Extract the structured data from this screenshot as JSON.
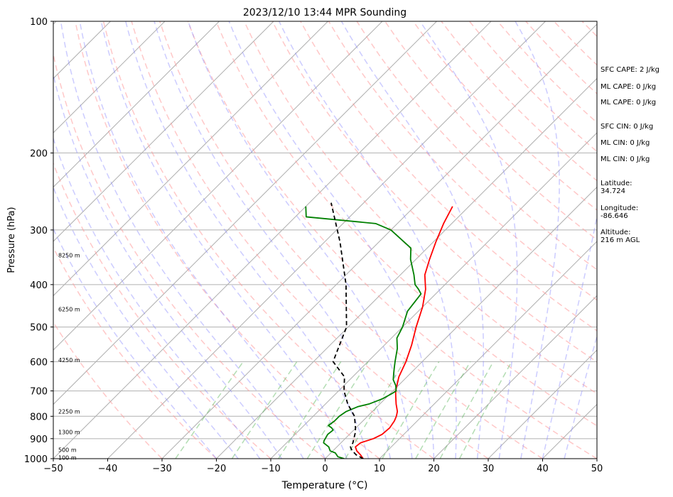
{
  "chart_data": {
    "type": "line",
    "title": "2023/12/10 13:44 MPR Sounding",
    "xlabel": "Temperature (°C)",
    "ylabel": "Pressure (hPa)",
    "xlim": [
      -50,
      50
    ],
    "ylim": [
      1000,
      100
    ],
    "y_scale": "log",
    "x_ticks": [
      "−50",
      "−40",
      "−30",
      "−20",
      "−10",
      "0",
      "10",
      "20",
      "30",
      "40",
      "50"
    ],
    "y_ticks": [
      "100",
      "200",
      "300",
      "400",
      "500",
      "600",
      "700",
      "800",
      "900",
      "1000"
    ],
    "grid": "horizontal isobars",
    "series": [
      {
        "color": "#ff0000",
        "x": [
          7.0,
          5.8,
          4.4,
          3.4,
          3.6,
          5.2,
          6.0,
          6.2,
          5.8,
          5.3,
          4.6,
          3.0,
          1.5,
          0.5,
          -1.5,
          -3.0,
          -5.0,
          -7.5,
          -10.0,
          -12.7,
          -15.5,
          -17.5,
          -19.5,
          -21.5,
          -23.0
        ],
        "y": [
          1000,
          980,
          960,
          940,
          920,
          900,
          880,
          850,
          820,
          800,
          780,
          750,
          720,
          700,
          650,
          600,
          550,
          500,
          450,
          410,
          380,
          350,
          320,
          290,
          265
        ]
      },
      {
        "color": "#008000",
        "x": [
          3.5,
          2.0,
          0.8,
          -0.5,
          -1.5,
          -3.2,
          -3.5,
          -4.0,
          -3.8,
          -4.5,
          -5.5,
          -5.2,
          -5.2,
          -4.8,
          -3.5,
          -2.0,
          -0.5,
          0.3,
          0.6,
          -0.5,
          -2.0,
          -3.0,
          -4.0,
          -5.0,
          -7.0,
          -9.0,
          -10.0,
          -12.0,
          -12.7,
          -14.0,
          -15.5,
          -17.5,
          -21.0,
          -23.0,
          -30.0,
          -34.0,
          -48.0,
          -50.0
        ],
        "y": [
          1000,
          990,
          970,
          960,
          940,
          920,
          910,
          880,
          860,
          850,
          840,
          820,
          800,
          780,
          760,
          750,
          730,
          710,
          700,
          680,
          660,
          640,
          620,
          600,
          560,
          530,
          500,
          460,
          420,
          410,
          400,
          380,
          350,
          330,
          300,
          290,
          280,
          265
        ]
      },
      {
        "color": "#000000",
        "x": [
          7.0,
          5.0,
          3.6,
          3.0,
          2.5,
          2.2,
          1.6,
          0.7,
          -0.1,
          -2.4,
          -5.9,
          -9.0,
          -11.5,
          -16.4,
          -20.3,
          -28.2,
          -37.1,
          -46.0
        ],
        "y": [
          1000,
          980,
          960,
          950,
          940,
          920,
          900,
          870,
          850,
          800,
          750,
          700,
          650,
          600,
          500,
          400,
          320,
          260
        ]
      }
    ],
    "height_labels": [
      {
        "text": "100 m",
        "p": 995
      },
      {
        "text": "500 m",
        "p": 955
      },
      {
        "text": "1300 m",
        "p": 870
      },
      {
        "text": "2250 m",
        "p": 780
      },
      {
        "text": "4250 m",
        "p": 595
      },
      {
        "text": "6250 m",
        "p": 455
      },
      {
        "text": "8250 m",
        "p": 343
      }
    ],
    "annotations": [
      "SFC CAPE: 2 J/kg",
      "ML CAPE: 0 J/kg",
      "ML CAPE: 0 J/kg",
      "SFC CIN: 0 J/kg",
      "ML CIN: 0 J/kg",
      "ML CIN: 0 J/kg",
      "Latitude:\n34.724",
      "Longitude:\n-86.646",
      "Altitude:\n216 m AGL"
    ]
  }
}
